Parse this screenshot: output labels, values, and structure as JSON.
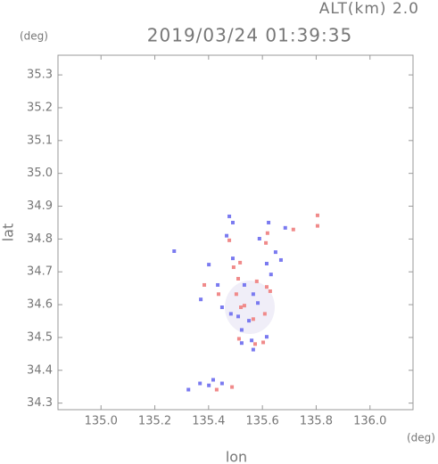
{
  "chart_data": {
    "type": "scatter",
    "title": "2019/03/24 01:39:35",
    "subtitle": "ALT(km) 2.0",
    "x_label": "lon",
    "y_label": "lat",
    "x_unit": "(deg)",
    "y_unit": "(deg)",
    "xlim": [
      134.84,
      136.16
    ],
    "ylim": [
      34.28,
      35.36
    ],
    "xticks": [
      {
        "value": 135,
        "label": "135.0"
      },
      135.2,
      135.4,
      135.6,
      135.8,
      {
        "value": 136,
        "label": "136.0"
      }
    ],
    "yticks": [
      34.3,
      34.4,
      34.5,
      34.6,
      34.7,
      34.8,
      34.9,
      {
        "value": 35,
        "label": "35.0"
      },
      35.1,
      35.2,
      35.3
    ],
    "series": [
      {
        "color": "#f08a8a",
        "x": [
          135.805,
          135.805,
          135.619,
          135.493,
          135.51,
          135.579,
          135.616,
          135.384,
          135.503,
          135.52,
          135.609,
          135.513,
          135.573,
          135.603,
          135.566,
          135.487,
          135.43,
          135.613,
          135.477,
          135.715,
          135.533,
          135.629,
          135.517,
          135.437
        ],
        "values": [
          34.872,
          34.84,
          34.818,
          34.714,
          34.679,
          34.671,
          34.654,
          34.66,
          34.632,
          34.592,
          34.572,
          34.496,
          34.48,
          34.485,
          34.556,
          34.349,
          34.341,
          34.788,
          34.796,
          34.829,
          34.597,
          34.641,
          34.728,
          34.632
        ]
      },
      {
        "color": "#7a7af0",
        "x": [
          135.477,
          135.49,
          135.467,
          135.589,
          135.623,
          135.685,
          135.272,
          135.401,
          135.616,
          135.632,
          135.533,
          135.434,
          135.566,
          135.45,
          135.483,
          135.55,
          135.583,
          135.523,
          135.616,
          135.56,
          135.566,
          135.523,
          135.368,
          135.401,
          135.325,
          135.45,
          135.417,
          135.649,
          135.669,
          135.49,
          135.371,
          135.51
        ],
        "values": [
          34.869,
          34.85,
          34.81,
          34.801,
          34.85,
          34.834,
          34.763,
          34.722,
          34.725,
          34.692,
          34.66,
          34.66,
          34.632,
          34.592,
          34.572,
          34.551,
          34.605,
          34.523,
          34.502,
          34.491,
          34.463,
          34.483,
          34.36,
          34.354,
          34.341,
          34.36,
          34.371,
          34.76,
          34.736,
          34.741,
          34.616,
          34.564
        ]
      }
    ]
  }
}
